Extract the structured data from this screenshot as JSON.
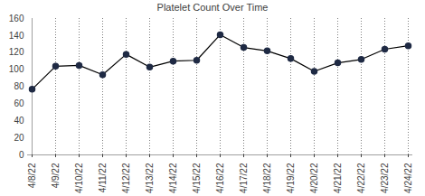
{
  "chart_data": {
    "type": "line",
    "title": "Platelet Count Over Time",
    "x": [
      "4/8/22",
      "4/9/22",
      "4/10/22",
      "4/11/22",
      "4/12/22",
      "4/13/22",
      "4/14/22",
      "4/15/22",
      "4/16/22",
      "4/17/22",
      "4/18/22",
      "4/19/22",
      "4/20/22",
      "4/21/22",
      "4/22/22",
      "4/23/22",
      "4/24/22"
    ],
    "values": [
      77,
      104,
      105,
      94,
      118,
      103,
      110,
      111,
      141,
      126,
      122,
      113,
      98,
      108,
      112,
      124,
      128
    ],
    "color": "#000000",
    "marker": "circle",
    "ylim": [
      0,
      160
    ],
    "yticks": [
      0,
      20,
      40,
      60,
      80,
      100,
      120,
      140,
      160
    ],
    "grid": true
  }
}
